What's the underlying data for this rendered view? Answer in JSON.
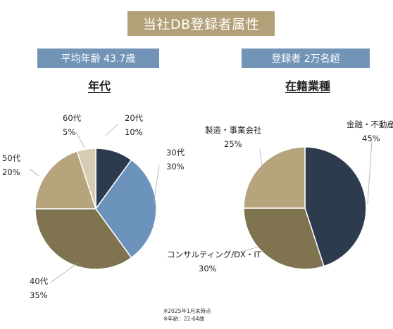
{
  "header": {
    "title": "当社DB登録者属性"
  },
  "badges": {
    "age": "平均年齢 43.7歳",
    "registrants": "登録者 2万名超"
  },
  "chart_data": [
    {
      "type": "pie",
      "title": "年代",
      "categories": [
        "20代",
        "30代",
        "40代",
        "50代",
        "60代"
      ],
      "values": [
        10,
        30,
        35,
        20,
        5
      ],
      "value_labels": [
        "10%",
        "30%",
        "35%",
        "20%",
        "5%"
      ],
      "colors": [
        "#2d3b4f",
        "#6b93bc",
        "#7f7350",
        "#b5a47c",
        "#d6ccb3"
      ]
    },
    {
      "type": "pie",
      "title": "在籍業種",
      "categories": [
        "金融・不動産",
        "コンサルティング/DX・IT",
        "製造・事業会社"
      ],
      "values": [
        45,
        30,
        25
      ],
      "value_labels": [
        "45%",
        "30%",
        "25%"
      ],
      "colors": [
        "#2d3b4f",
        "#7f7350",
        "#b5a47c"
      ]
    }
  ],
  "footnotes": [
    "※2025年1月末時点",
    "※年齢：22-64歳"
  ]
}
